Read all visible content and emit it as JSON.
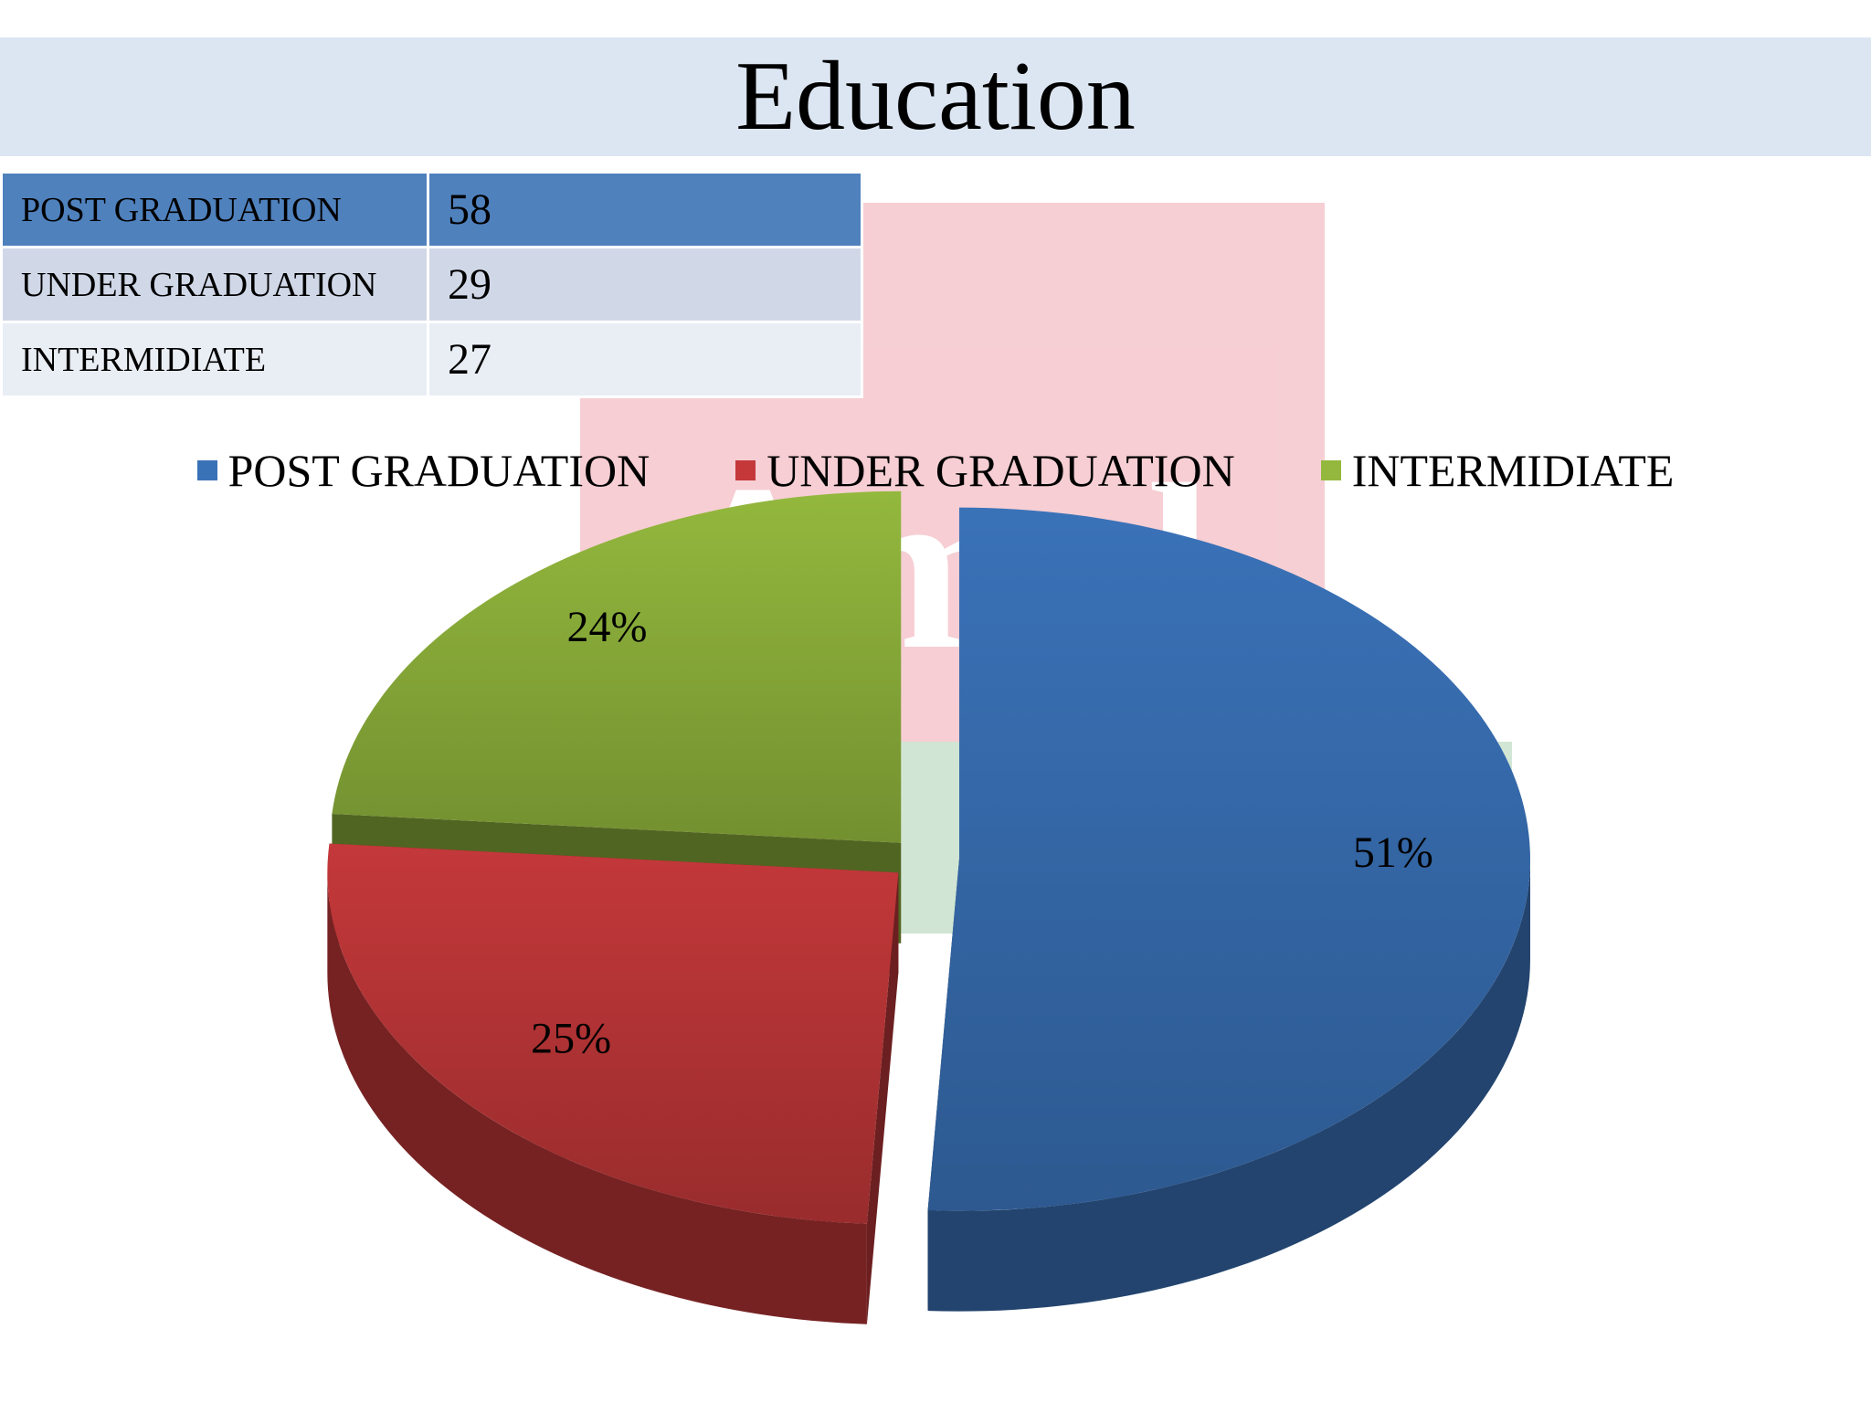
{
  "slide": {
    "title": "Education"
  },
  "table": {
    "rows": [
      {
        "label": "POST GRADUATION",
        "value": "58"
      },
      {
        "label": "UNDER GRADUATION",
        "value": "29"
      },
      {
        "label": "INTERMIDIATE",
        "value": "27"
      }
    ]
  },
  "watermark": {
    "text": "Amul"
  },
  "chart_data": {
    "type": "pie",
    "title": "",
    "legend_position": "top",
    "categories": [
      "POST GRADUATION",
      "UNDER GRADUATION",
      "INTERMIDIATE"
    ],
    "values": [
      58,
      29,
      27
    ],
    "labels": [
      "51%",
      "25%",
      "24%"
    ],
    "colors": [
      "#3a72b8",
      "#c4383a",
      "#93b83d"
    ],
    "series": [
      {
        "values": [
          58,
          29,
          27
        ]
      }
    ]
  }
}
